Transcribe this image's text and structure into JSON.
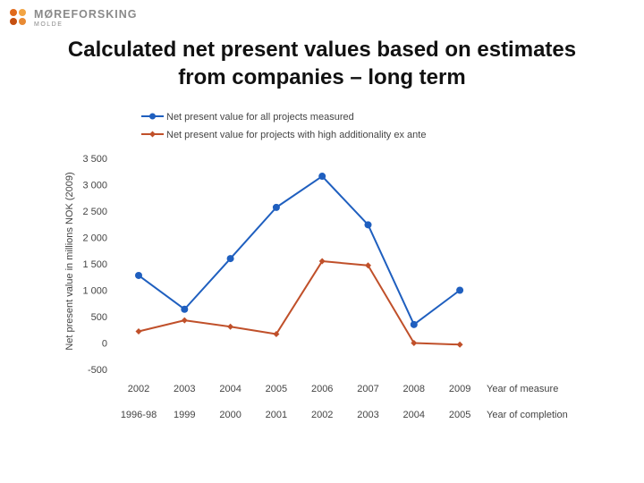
{
  "logo": {
    "name": "MØREFORSKING",
    "sub": "MOLDE"
  },
  "title_lines": [
    "Calculated net present values based on estimates",
    "from companies – long term"
  ],
  "chart_data": {
    "type": "line",
    "title": "Calculated net present values based on estimates from companies – long term",
    "ylabel": "Net present value in millions NOK (2009)",
    "ylim": [
      -500,
      3500
    ],
    "yticks": [
      3500,
      3000,
      2500,
      2000,
      1500,
      1000,
      500,
      0,
      -500
    ],
    "ytick_labels": [
      "3 500",
      "3 000",
      "2 500",
      "2 000",
      "1 500",
      "1 000",
      "500",
      "0",
      "-500"
    ],
    "categories": [
      "2002",
      "2003",
      "2004",
      "2005",
      "2006",
      "2007",
      "2008",
      "2009"
    ],
    "secondary_categories": [
      "1996-98",
      "1999",
      "2000",
      "2001",
      "2002",
      "2003",
      "2004",
      "2005"
    ],
    "category_axis_label": "Year of measure",
    "secondary_axis_label": "Year of completion",
    "series": [
      {
        "name": "Net present value for all projects measured",
        "color": "#1f5fbf",
        "marker": "circle",
        "values": [
          1280,
          640,
          1600,
          2570,
          3160,
          2240,
          350,
          1000
        ]
      },
      {
        "name": "Net present value for projects with high additionality ex ante",
        "color": "#c0502a",
        "marker": "diamond",
        "values": [
          220,
          430,
          310,
          170,
          1550,
          1470,
          0,
          -30
        ]
      }
    ]
  }
}
